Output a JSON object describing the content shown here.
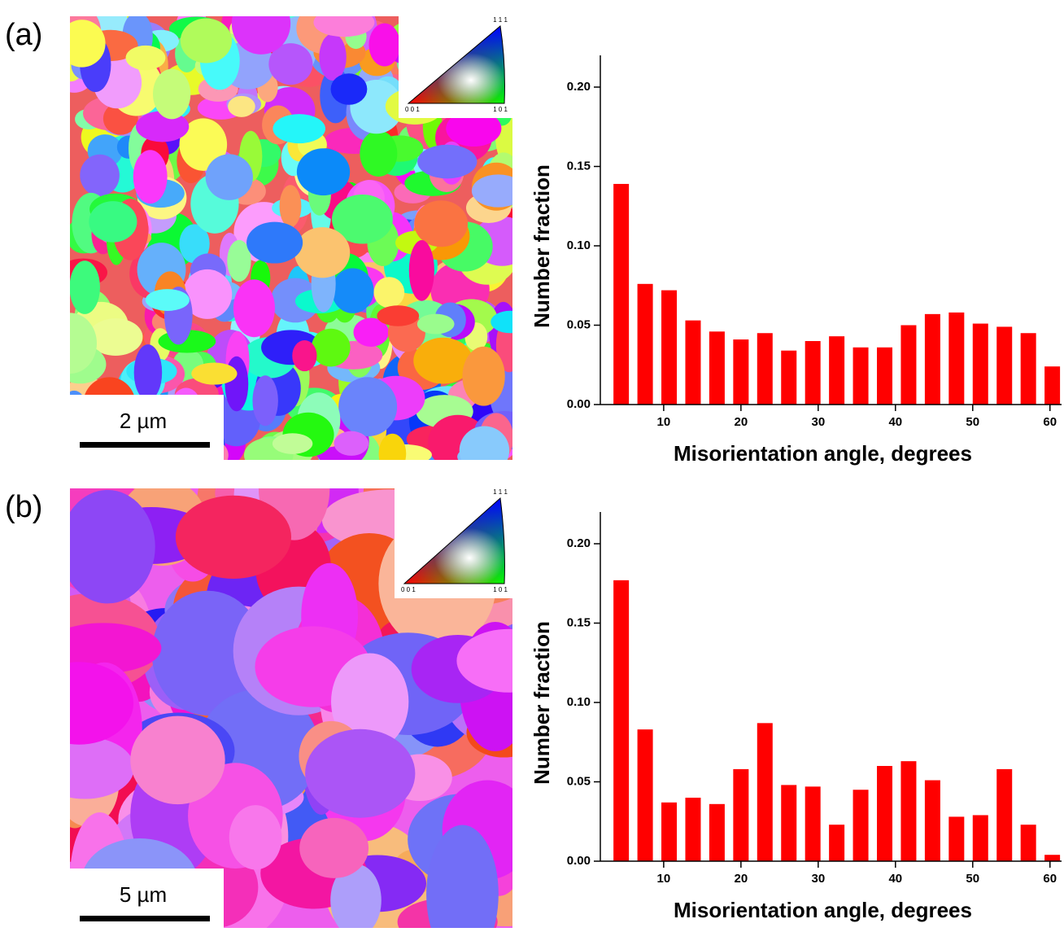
{
  "panels": [
    {
      "label": "(a)",
      "scale_bar": "2 µm",
      "legend": {
        "top": "1 1 1",
        "left": "0 0 1",
        "right": "1 0 1"
      }
    },
    {
      "label": "(b)",
      "scale_bar": "5 µm",
      "legend": {
        "top": "1 1 1",
        "left": "0 0 1",
        "right": "1 0 1"
      }
    }
  ],
  "chart_data": [
    {
      "type": "bar",
      "xlabel": "Misorientation angle, degrees",
      "ylabel": "Number fraction",
      "color": "#ff0000",
      "x": [
        4.5,
        7.6,
        10.7,
        13.8,
        16.9,
        20.0,
        23.1,
        26.2,
        29.3,
        32.4,
        35.5,
        38.6,
        41.7,
        44.8,
        47.9,
        51.0,
        54.1,
        57.2,
        60.3
      ],
      "values": [
        0.139,
        0.076,
        0.072,
        0.053,
        0.046,
        0.041,
        0.045,
        0.034,
        0.04,
        0.043,
        0.036,
        0.036,
        0.05,
        0.057,
        0.058,
        0.051,
        0.049,
        0.045,
        0.024
      ],
      "xlim": [
        1.8,
        61.5
      ],
      "xticks": [
        10,
        20,
        30,
        40,
        50,
        60
      ],
      "ylim": [
        0,
        0.22
      ],
      "yticks": [
        {
          "value": 0,
          "label": "0.00"
        },
        0.05,
        {
          "value": 0.1,
          "label": "0.10"
        },
        0.15,
        {
          "value": 0.2,
          "label": "0.20"
        }
      ]
    },
    {
      "type": "bar",
      "xlabel": "Misorientation angle, degrees",
      "ylabel": "Number fraction",
      "color": "#ff0000",
      "x": [
        4.5,
        7.6,
        10.7,
        13.8,
        16.9,
        20.0,
        23.1,
        26.2,
        29.3,
        32.4,
        35.5,
        38.6,
        41.7,
        44.8,
        47.9,
        51.0,
        54.1,
        57.2,
        60.3
      ],
      "values": [
        0.177,
        0.083,
        0.037,
        0.04,
        0.036,
        0.058,
        0.087,
        0.048,
        0.047,
        0.023,
        0.045,
        0.06,
        0.063,
        0.051,
        0.028,
        0.029,
        0.058,
        0.023,
        0.004
      ],
      "xlim": [
        1.8,
        61.5
      ],
      "xticks": [
        10,
        20,
        30,
        40,
        50,
        60
      ],
      "ylim": [
        0,
        0.22
      ],
      "yticks": [
        {
          "value": 0,
          "label": "0.00"
        },
        0.05,
        {
          "value": 0.1,
          "label": "0.10"
        },
        0.15,
        {
          "value": 0.2,
          "label": "0.20"
        }
      ]
    }
  ]
}
